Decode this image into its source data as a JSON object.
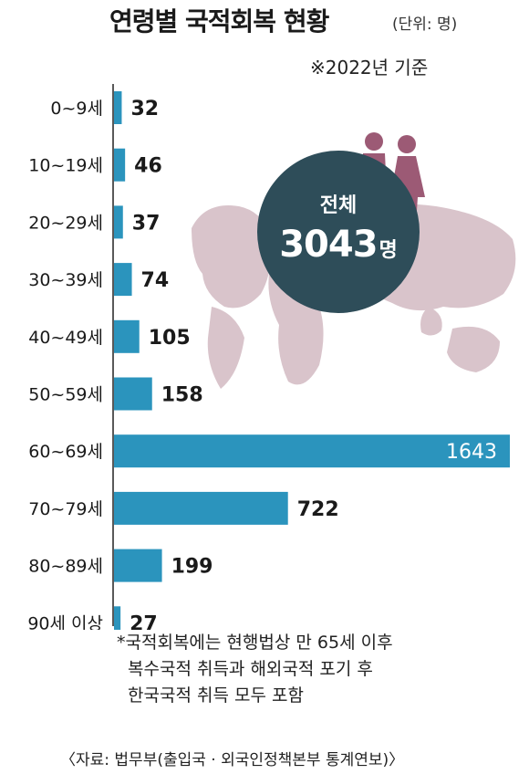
{
  "title": "연령별 국적회복 현황",
  "unit": "(단위: 명)",
  "basis": "※2022년 기준",
  "total": {
    "label": "전체",
    "value": "3043",
    "unit": "명"
  },
  "note_lines": [
    "*국적회복에는 현행법상 만 65세 이후",
    "복수국적 취득과 해외국적 포기 후",
    "한국국적 취득 모두 포함"
  ],
  "source": "〈자료: 법무부(출입국 · 외국인정책본부 통계연보)〉",
  "colors": {
    "bar": "#2b94bd",
    "circle": "#2e4d59",
    "map": "#d9c4cb",
    "people": "#9c5a75"
  },
  "chart_data": {
    "type": "bar",
    "orientation": "horizontal",
    "categories": [
      "0~9세",
      "10~19세",
      "20~29세",
      "30~39세",
      "40~49세",
      "50~59세",
      "60~69세",
      "70~79세",
      "80~89세",
      "90세 이상"
    ],
    "values": [
      32,
      46,
      37,
      74,
      105,
      158,
      1643,
      722,
      199,
      27
    ],
    "xlim": [
      0,
      1643
    ],
    "grid": false,
    "legend": "none"
  }
}
